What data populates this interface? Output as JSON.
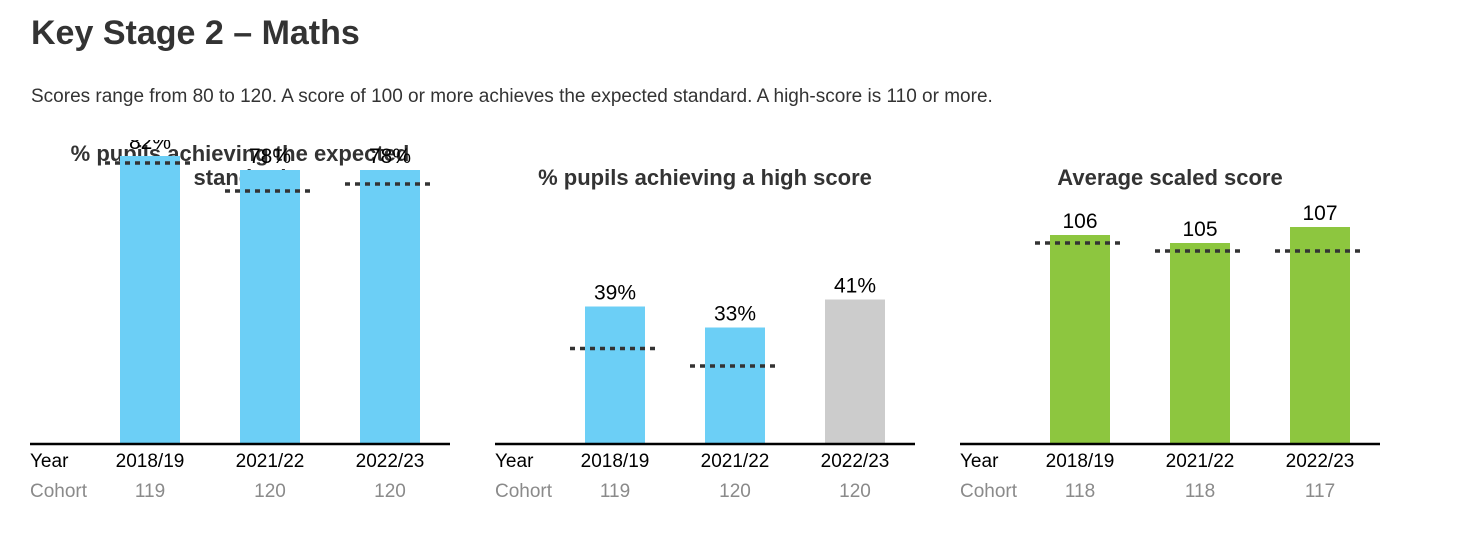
{
  "header": {
    "title": "Key Stage 2 – Maths",
    "subtitle": "Scores range from 80 to 120. A score of 100 or more achieves the expected standard. A high-score is 110 or more."
  },
  "colors": {
    "blue": "#6ccff6",
    "grey": "#cccccc",
    "green": "#8dc63f",
    "axis": "#000000",
    "dots": "#333333"
  },
  "chart_data": [
    {
      "type": "bar",
      "title": "% pupils achieving the expected standard",
      "row_labels": {
        "year": "Year",
        "cohort": "Cohort"
      },
      "categories": [
        "2018/19",
        "2021/22",
        "2022/23"
      ],
      "cohort": [
        "119",
        "120",
        "120"
      ],
      "values": [
        82,
        78,
        78
      ],
      "value_labels": [
        "82%",
        "78%",
        "78%"
      ],
      "reference_values": [
        80,
        72,
        74
      ],
      "bar_colors": [
        "blue",
        "blue",
        "blue"
      ],
      "ylim": [
        0,
        100
      ]
    },
    {
      "type": "bar",
      "title": "% pupils achieving a high score",
      "row_labels": {
        "year": "Year",
        "cohort": "Cohort"
      },
      "categories": [
        "2018/19",
        "2021/22",
        "2022/23"
      ],
      "cohort": [
        "119",
        "120",
        "120"
      ],
      "values": [
        39,
        33,
        41
      ],
      "value_labels": [
        "39%",
        "33%",
        "41%"
      ],
      "reference_values": [
        27,
        22,
        null
      ],
      "bar_colors": [
        "blue",
        "blue",
        "grey"
      ],
      "ylim": [
        0,
        100
      ]
    },
    {
      "type": "bar",
      "title": "Average scaled score",
      "row_labels": {
        "year": "Year",
        "cohort": "Cohort"
      },
      "categories": [
        "2018/19",
        "2021/22",
        "2022/23"
      ],
      "cohort": [
        "118",
        "118",
        "117"
      ],
      "values": [
        106,
        105,
        107
      ],
      "value_labels": [
        "106",
        "105",
        "107"
      ],
      "reference_values": [
        105,
        104,
        104
      ],
      "bar_colors": [
        "green",
        "green",
        "green"
      ],
      "ylim": [
        80,
        120
      ]
    }
  ]
}
